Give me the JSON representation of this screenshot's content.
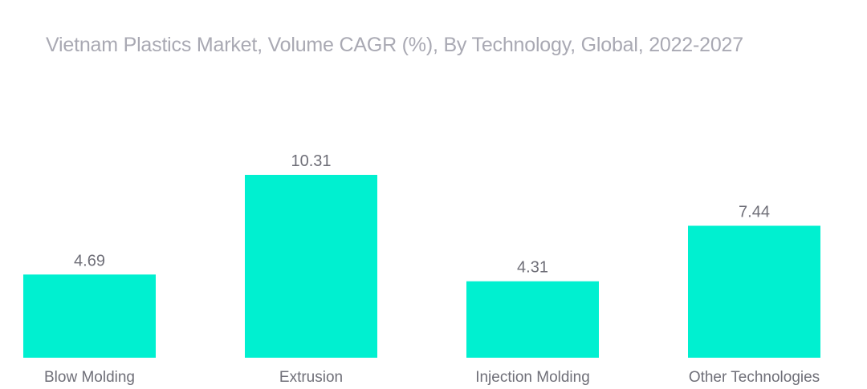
{
  "chart_data": {
    "type": "bar",
    "title": "Vietnam Plastics Market, Volume CAGR (%), By Technology, Global, 2022-2027",
    "categories": [
      "Blow Molding",
      "Extrusion",
      "Injection Molding",
      "Other Technologies"
    ],
    "values": [
      4.69,
      10.31,
      4.31,
      7.44
    ],
    "value_labels": [
      "4.69",
      "10.31",
      "4.31",
      "7.44"
    ],
    "xlabel": "",
    "ylabel": "",
    "ylim": [
      0,
      10.31
    ],
    "grid": false,
    "legend": "none",
    "bar_color": "#00f0d0"
  }
}
